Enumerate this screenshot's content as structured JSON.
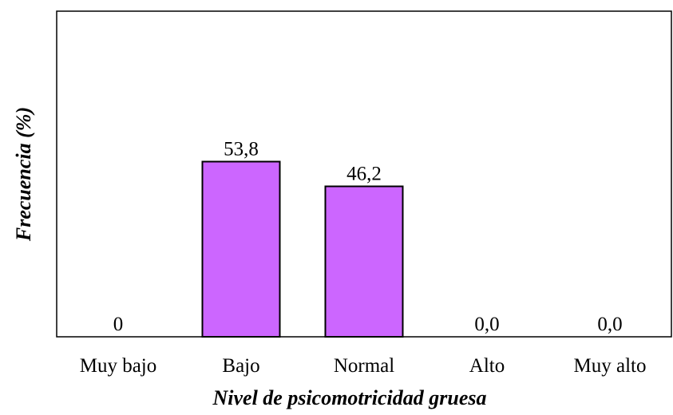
{
  "chart_data": {
    "type": "bar",
    "title": "",
    "xlabel": "Nivel de psicomotricidad gruesa",
    "ylabel": "Frecuencia (%)",
    "categories": [
      "Muy bajo",
      "Bajo",
      "Normal",
      "Alto",
      "Muy alto"
    ],
    "values": [
      0,
      53.8,
      46.2,
      0.0,
      0.0
    ],
    "data_labels": [
      "0",
      "53,8",
      "46,2",
      "0,0",
      "0,0"
    ],
    "ylim": [
      0,
      100
    ],
    "grid": false,
    "legend": "none",
    "bar_color": "#CC66FF",
    "bar_edge_color": "#000000"
  }
}
